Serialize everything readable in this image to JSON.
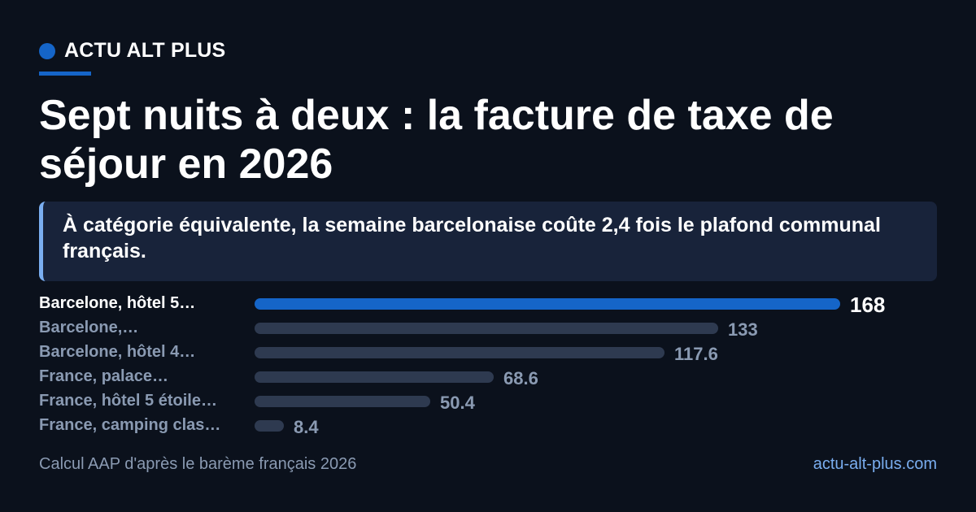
{
  "brand": {
    "name": "ACTU ALT PLUS"
  },
  "headline": "Sept nuits à deux : la facture de taxe de séjour en 2026",
  "callout": "À catégorie équivalente, la semaine barcelonaise coûte 2,4 fois le plafond communal français.",
  "chart_data": {
    "type": "bar",
    "orientation": "horizontal",
    "categories": [
      "Barcelone, hôtel 5…",
      "Barcelone,…",
      "Barcelone, hôtel 4…",
      "France, palace…",
      "France, hôtel 5 étoile…",
      "France, camping clas…"
    ],
    "values": [
      168,
      133,
      117.6,
      68.6,
      50.4,
      8.4
    ],
    "value_labels": [
      "168",
      "133",
      "117.6",
      "68.6",
      "50.4",
      "8.4"
    ],
    "highlight_index": 0,
    "xlim": [
      0,
      168
    ],
    "grid": false,
    "colors": {
      "highlight": "#1565c8",
      "default": "#2e3a50"
    }
  },
  "footer": {
    "source": "Calcul AAP d'après le barème français 2026",
    "site": "actu-alt-plus.com"
  }
}
